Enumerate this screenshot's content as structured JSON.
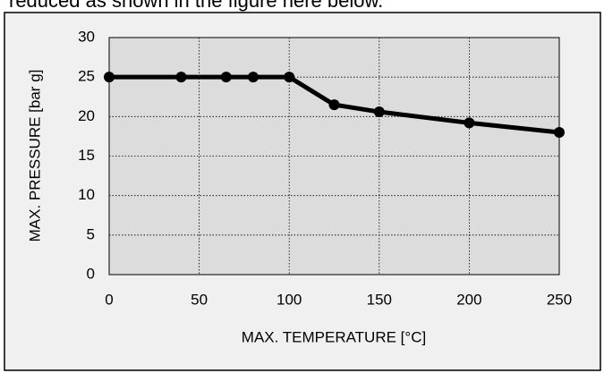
{
  "caption": "reduced as shown in the figure here below.",
  "chart_data": {
    "type": "line",
    "x_label": "MAX. TEMPERATURE [°C]",
    "y_label": "MAX. PRESSURE [bar g]",
    "x": [
      0,
      40,
      65,
      80,
      100,
      125,
      150,
      200,
      250
    ],
    "series": [
      {
        "color": "#000000",
        "values": [
          25,
          25,
          25,
          25,
          25,
          21.5,
          20.6,
          19.2,
          18
        ]
      }
    ],
    "xlim": [
      0,
      250
    ],
    "xticks": [
      0,
      50,
      100,
      150,
      200,
      250
    ],
    "ylim": [
      0,
      30
    ],
    "yticks": [
      0,
      5,
      10,
      15,
      20,
      25,
      30
    ],
    "grid": true
  }
}
